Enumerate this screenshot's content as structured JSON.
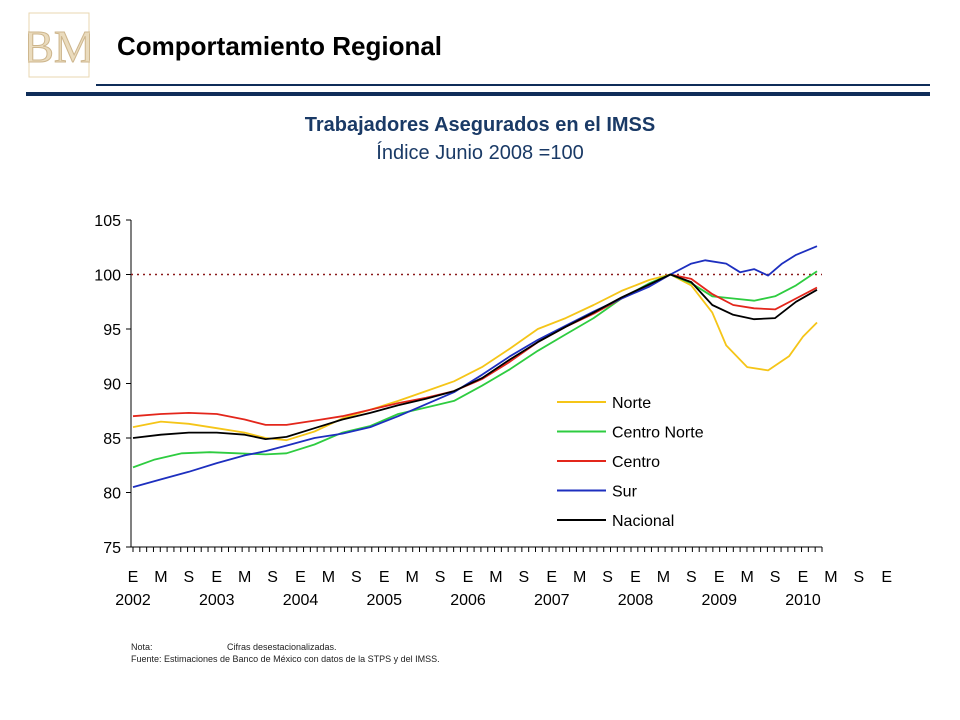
{
  "header": {
    "title": "Comportamiento Regional",
    "logo_text": "BM"
  },
  "notes": {
    "nota_label": "Nota:",
    "nota_text": "Cifras desestacionalizadas.",
    "fuente": "Fuente: Estimaciones de Banco de México con datos de la STPS y del IMSS."
  },
  "colors": {
    "brand_navy": "#0f2d59",
    "title_blue": "#1a3a66",
    "reference_line": "#8b1a1a"
  },
  "chart_data": {
    "type": "line",
    "title": "Trabajadores Asegurados en el IMSS",
    "subtitle": "Índice Junio 2008 =100",
    "ylim": [
      75,
      105
    ],
    "yticks": [
      "75",
      "80",
      "85",
      "90",
      "95",
      "100",
      "105"
    ],
    "reference_line": 100,
    "grid": false,
    "legend_position": "right-center",
    "x_month_labels": [
      "E",
      "M",
      "S",
      "E",
      "M",
      "S",
      "E",
      "M",
      "S",
      "E",
      "M",
      "S",
      "E",
      "M",
      "S",
      "E",
      "M",
      "S",
      "E",
      "M",
      "S",
      "E",
      "M",
      "S",
      "E",
      "M",
      "S",
      "E"
    ],
    "x_year_labels": [
      "2002",
      "2003",
      "2004",
      "2005",
      "2006",
      "2007",
      "2008",
      "2009",
      "2010"
    ],
    "x_start": "2002-01",
    "x_end": "2010-01",
    "series": [
      {
        "name": "Norte",
        "color": "#f5c518",
        "points": [
          [
            "2002-01",
            86.0
          ],
          [
            "2002-05",
            86.5
          ],
          [
            "2002-09",
            86.3
          ],
          [
            "2003-01",
            85.9
          ],
          [
            "2003-05",
            85.5
          ],
          [
            "2003-08",
            85.0
          ],
          [
            "2003-11",
            84.8
          ],
          [
            "2004-03",
            85.6
          ],
          [
            "2004-07",
            86.8
          ],
          [
            "2004-11",
            87.6
          ],
          [
            "2005-03",
            88.4
          ],
          [
            "2005-07",
            89.3
          ],
          [
            "2005-11",
            90.2
          ],
          [
            "2006-03",
            91.5
          ],
          [
            "2006-07",
            93.2
          ],
          [
            "2006-11",
            95.0
          ],
          [
            "2007-03",
            96.0
          ],
          [
            "2007-07",
            97.2
          ],
          [
            "2007-11",
            98.5
          ],
          [
            "2008-03",
            99.5
          ],
          [
            "2008-06",
            100.0
          ],
          [
            "2008-09",
            99.0
          ],
          [
            "2008-12",
            96.5
          ],
          [
            "2009-02",
            93.5
          ],
          [
            "2009-05",
            91.5
          ],
          [
            "2009-08",
            91.2
          ],
          [
            "2009-11",
            92.5
          ],
          [
            "2010-01",
            94.3
          ],
          [
            "2010-03",
            95.6
          ]
        ]
      },
      {
        "name": "Centro Norte",
        "color": "#2ecc40",
        "points": [
          [
            "2002-01",
            82.3
          ],
          [
            "2002-04",
            83.0
          ],
          [
            "2002-08",
            83.6
          ],
          [
            "2002-12",
            83.7
          ],
          [
            "2003-04",
            83.6
          ],
          [
            "2003-08",
            83.5
          ],
          [
            "2003-11",
            83.6
          ],
          [
            "2004-03",
            84.4
          ],
          [
            "2004-07",
            85.5
          ],
          [
            "2004-11",
            86.1
          ],
          [
            "2005-03",
            87.2
          ],
          [
            "2005-07",
            87.8
          ],
          [
            "2005-11",
            88.4
          ],
          [
            "2006-03",
            89.8
          ],
          [
            "2006-07",
            91.3
          ],
          [
            "2006-11",
            93.0
          ],
          [
            "2007-03",
            94.5
          ],
          [
            "2007-07",
            96.0
          ],
          [
            "2007-11",
            97.8
          ],
          [
            "2008-03",
            99.2
          ],
          [
            "2008-06",
            100.0
          ],
          [
            "2008-09",
            99.2
          ],
          [
            "2008-12",
            98.0
          ],
          [
            "2009-03",
            97.8
          ],
          [
            "2009-06",
            97.6
          ],
          [
            "2009-09",
            98.0
          ],
          [
            "2009-12",
            99.0
          ],
          [
            "2010-03",
            100.3
          ]
        ]
      },
      {
        "name": "Centro",
        "color": "#e3261b",
        "points": [
          [
            "2002-01",
            87.0
          ],
          [
            "2002-05",
            87.2
          ],
          [
            "2002-09",
            87.3
          ],
          [
            "2003-01",
            87.2
          ],
          [
            "2003-05",
            86.7
          ],
          [
            "2003-08",
            86.2
          ],
          [
            "2003-11",
            86.2
          ],
          [
            "2004-03",
            86.6
          ],
          [
            "2004-07",
            87.0
          ],
          [
            "2004-11",
            87.6
          ],
          [
            "2005-03",
            88.2
          ],
          [
            "2005-07",
            88.7
          ],
          [
            "2005-11",
            89.3
          ],
          [
            "2006-03",
            90.4
          ],
          [
            "2006-07",
            92.0
          ],
          [
            "2006-11",
            93.8
          ],
          [
            "2007-03",
            95.2
          ],
          [
            "2007-07",
            96.4
          ],
          [
            "2007-11",
            97.8
          ],
          [
            "2008-03",
            99.0
          ],
          [
            "2008-06",
            100.0
          ],
          [
            "2008-09",
            99.6
          ],
          [
            "2008-12",
            98.2
          ],
          [
            "2009-03",
            97.2
          ],
          [
            "2009-06",
            96.9
          ],
          [
            "2009-09",
            96.8
          ],
          [
            "2009-12",
            97.8
          ],
          [
            "2010-03",
            98.8
          ]
        ]
      },
      {
        "name": "Sur",
        "color": "#1d2fbf",
        "points": [
          [
            "2002-01",
            80.5
          ],
          [
            "2002-05",
            81.2
          ],
          [
            "2002-09",
            81.9
          ],
          [
            "2003-01",
            82.7
          ],
          [
            "2003-05",
            83.4
          ],
          [
            "2003-08",
            83.8
          ],
          [
            "2003-11",
            84.3
          ],
          [
            "2004-03",
            85.0
          ],
          [
            "2004-07",
            85.4
          ],
          [
            "2004-11",
            86.0
          ],
          [
            "2005-03",
            87.0
          ],
          [
            "2005-07",
            88.1
          ],
          [
            "2005-11",
            89.2
          ],
          [
            "2006-03",
            90.8
          ],
          [
            "2006-07",
            92.5
          ],
          [
            "2006-11",
            94.0
          ],
          [
            "2007-03",
            95.3
          ],
          [
            "2007-07",
            96.6
          ],
          [
            "2007-11",
            97.8
          ],
          [
            "2008-03",
            98.9
          ],
          [
            "2008-06",
            100.0
          ],
          [
            "2008-09",
            101.0
          ],
          [
            "2008-11",
            101.3
          ],
          [
            "2009-02",
            101.0
          ],
          [
            "2009-04",
            100.2
          ],
          [
            "2009-06",
            100.5
          ],
          [
            "2009-08",
            99.9
          ],
          [
            "2009-10",
            101.0
          ],
          [
            "2009-12",
            101.8
          ],
          [
            "2010-03",
            102.6
          ]
        ]
      },
      {
        "name": "Nacional",
        "color": "#000000",
        "points": [
          [
            "2002-01",
            85.0
          ],
          [
            "2002-05",
            85.3
          ],
          [
            "2002-09",
            85.5
          ],
          [
            "2003-01",
            85.5
          ],
          [
            "2003-05",
            85.3
          ],
          [
            "2003-08",
            84.9
          ],
          [
            "2003-11",
            85.1
          ],
          [
            "2004-03",
            85.9
          ],
          [
            "2004-07",
            86.7
          ],
          [
            "2004-11",
            87.3
          ],
          [
            "2005-03",
            88.0
          ],
          [
            "2005-07",
            88.6
          ],
          [
            "2005-11",
            89.3
          ],
          [
            "2006-03",
            90.5
          ],
          [
            "2006-07",
            92.2
          ],
          [
            "2006-11",
            93.8
          ],
          [
            "2007-03",
            95.2
          ],
          [
            "2007-07",
            96.5
          ],
          [
            "2007-11",
            97.9
          ],
          [
            "2008-03",
            99.1
          ],
          [
            "2008-06",
            100.0
          ],
          [
            "2008-09",
            99.3
          ],
          [
            "2008-12",
            97.2
          ],
          [
            "2009-03",
            96.3
          ],
          [
            "2009-06",
            95.9
          ],
          [
            "2009-09",
            96.0
          ],
          [
            "2009-12",
            97.5
          ],
          [
            "2010-03",
            98.6
          ]
        ]
      }
    ]
  }
}
